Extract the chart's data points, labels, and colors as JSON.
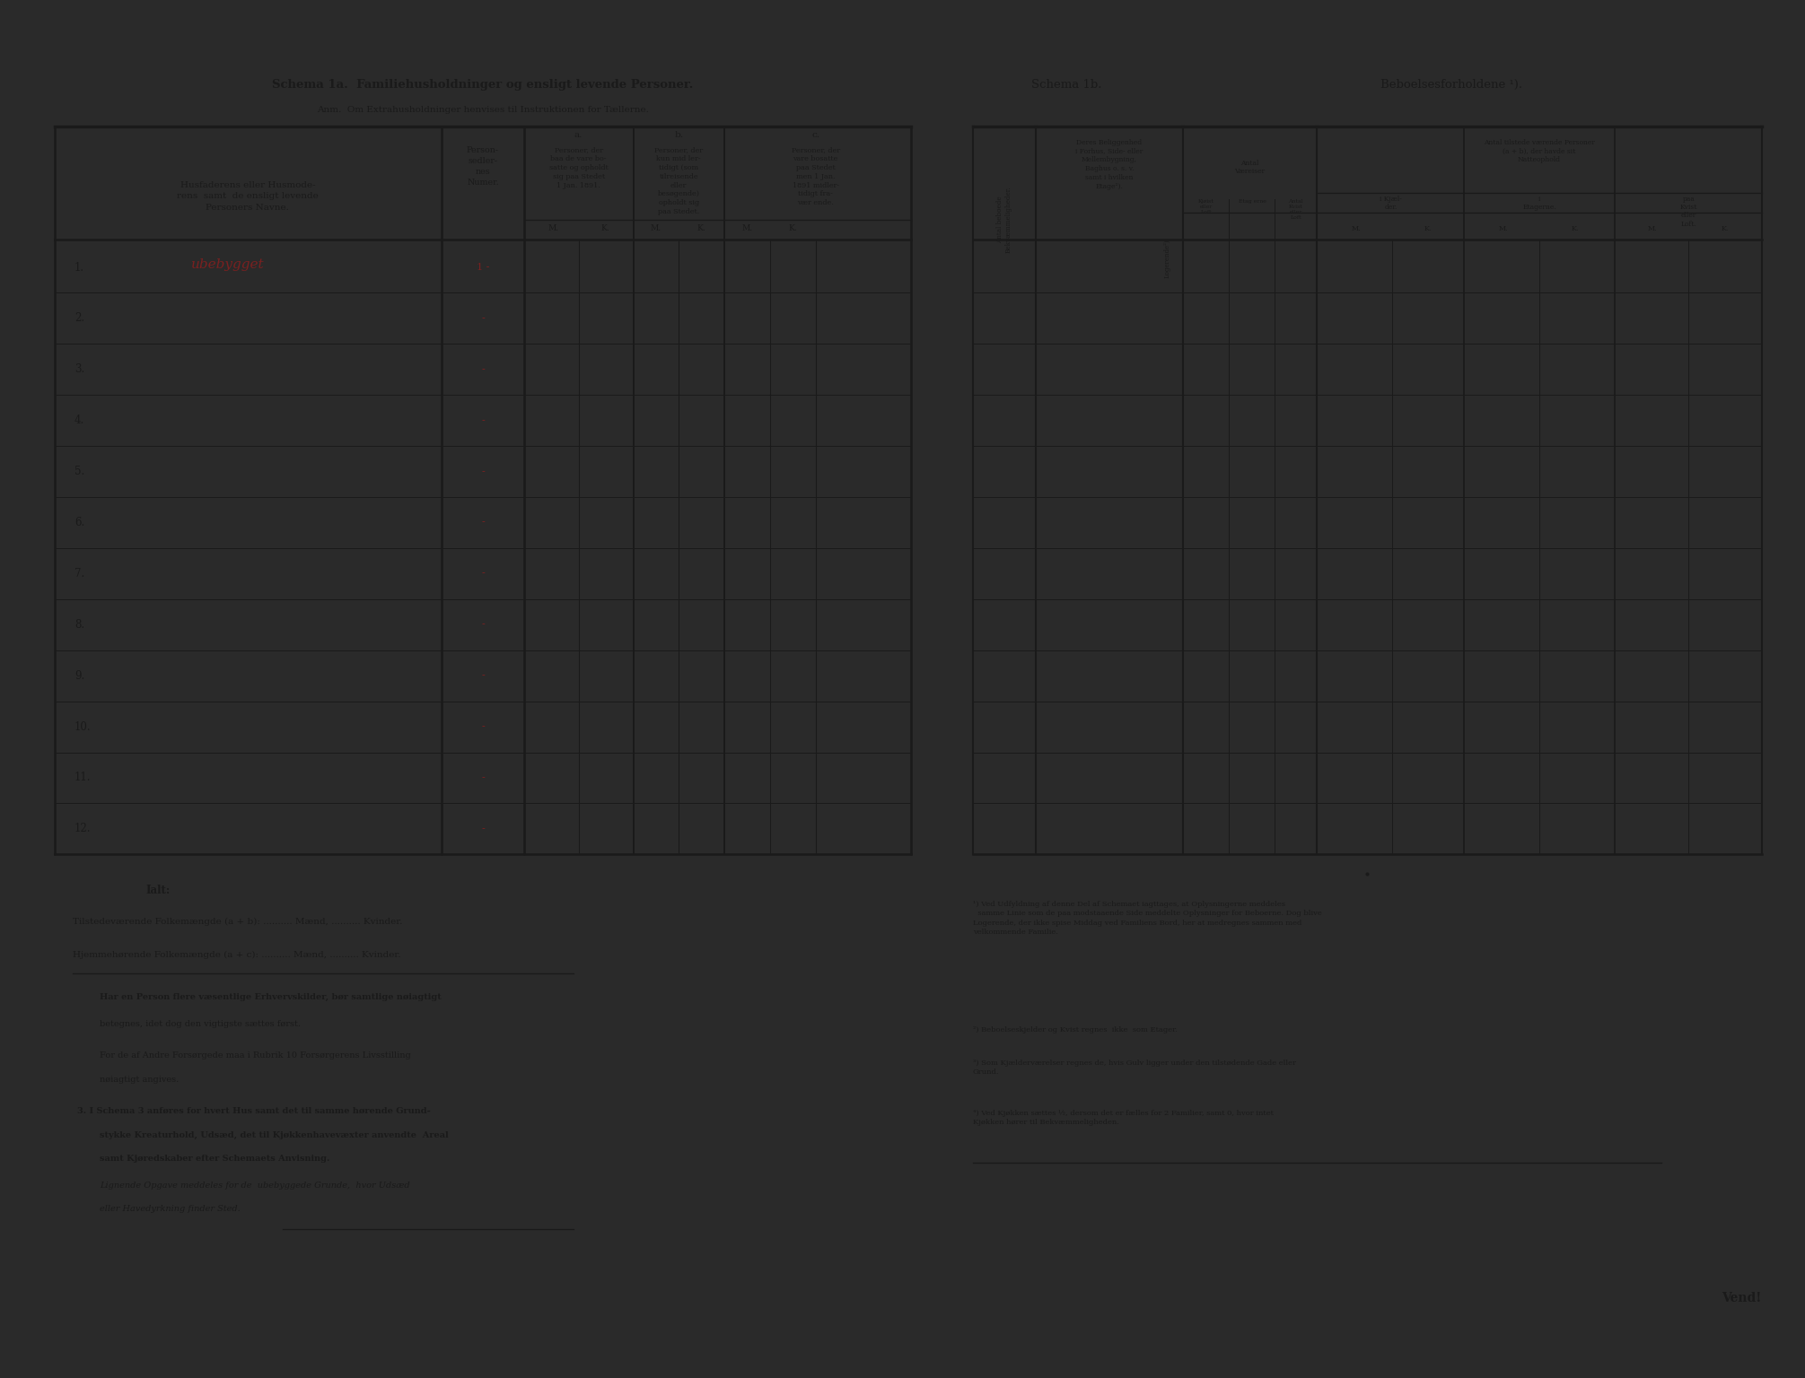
{
  "bg_color": "#2a2a2a",
  "paper_color": "#e8e6d0",
  "dark_color": "#1a1a1a",
  "red_color": "#7a2020",
  "title_left": "Schema 1a.  Familiehusholdninger og ensligt levende Personer.",
  "subtitle_left": "Anm.  Om Extrahusholdninger henvises til Instruktionen for Tællerne.",
  "title_right": "Schema 1b.",
  "subtitle_right": "Beboelsesforholdene ¹).",
  "col_header_name": "Husfaderens eller Husmode-\nrens samt de ensligt levende\nPersoners Navne.",
  "col_header_person": "Person-\nsedler-\nnes\nNumer.",
  "row_numbers": [
    "1.",
    "2.",
    "3.",
    "4.",
    "5.",
    "6.",
    "7.",
    "8.",
    "9.",
    "10.",
    "11.",
    "12."
  ],
  "handwritten_row1_name": "ubebygget",
  "handwritten_row1_num": "1 -",
  "footer_line1": "Ialt:",
  "footer_line2": "Tilstedeværende Folkemængde (a + b): .......... Mænd, .......... Kvinder.",
  "footer_line3": "Hjemmehørende Folkemængde (a + c): .......... Mænd, .......... Kvinder.",
  "vend_text": "Vend!"
}
